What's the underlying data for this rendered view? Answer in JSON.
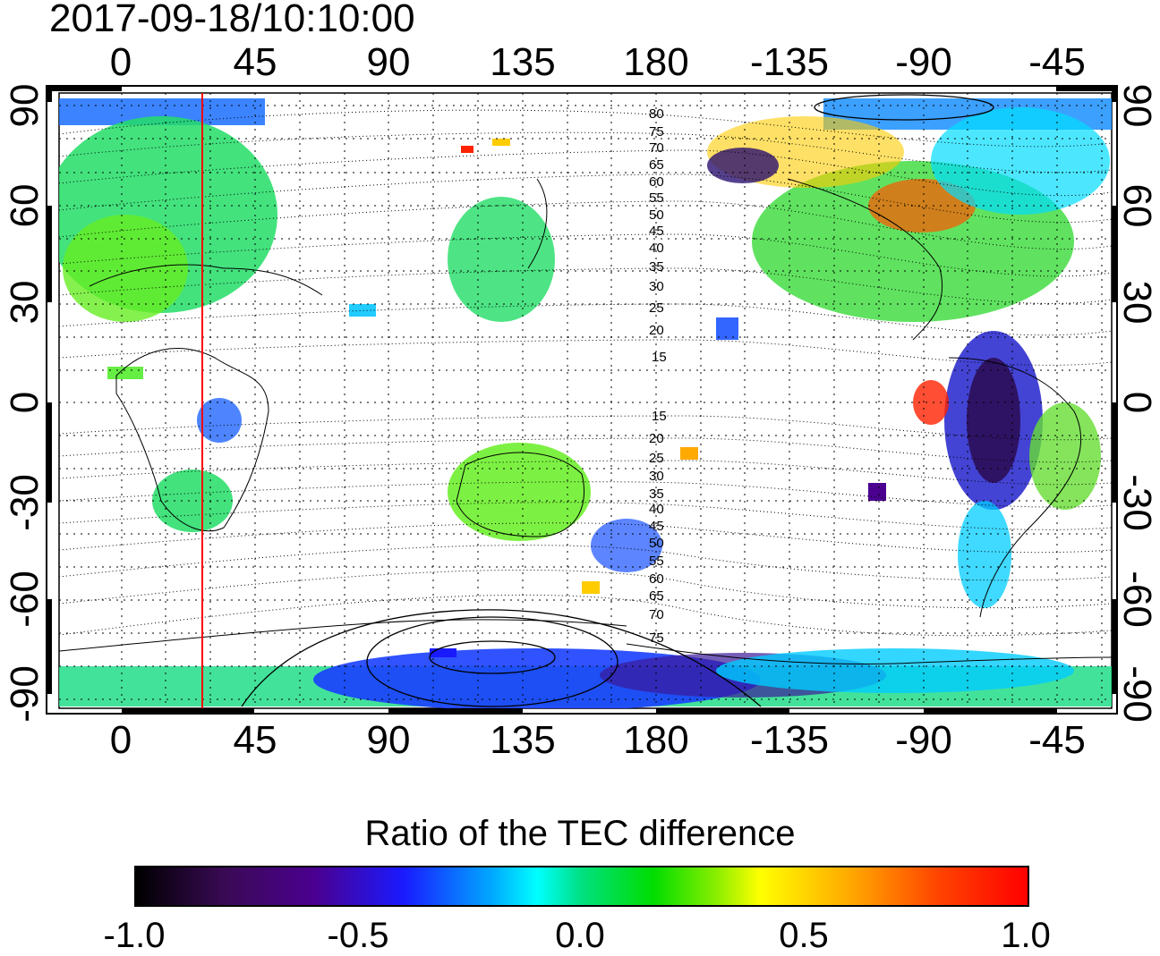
{
  "timestamp": "2017-09-18/10:10:00",
  "axes": {
    "lon_top": [
      "0",
      "45",
      "90",
      "135",
      "180",
      "-135",
      "-90",
      "-45"
    ],
    "lon_bottom": [
      "0",
      "45",
      "90",
      "135",
      "180",
      "-135",
      "-90",
      "-45"
    ],
    "lat_left": [
      "90",
      "60",
      "30",
      "0",
      "-30",
      "-60",
      "-90"
    ],
    "lat_right": [
      "90",
      "60",
      "30",
      "0",
      "-30",
      "-60",
      "-90"
    ]
  },
  "magnetic_latitude_labels": {
    "north": [
      "80",
      "75",
      "70",
      "65",
      "60",
      "55",
      "50",
      "45",
      "40",
      "35",
      "30",
      "25",
      "20",
      "15"
    ],
    "south": [
      "15",
      "20",
      "25",
      "30",
      "35",
      "40",
      "45",
      "50",
      "55",
      "60",
      "65",
      "70",
      "75"
    ]
  },
  "terminator_marker": {
    "longitude": 28,
    "color": "#ff0000"
  },
  "colorbar": {
    "title": "Ratio of the TEC difference",
    "ticks": [
      "-1.0",
      "-0.5",
      "0.0",
      "0.5",
      "1.0"
    ],
    "range": [
      -1.0,
      1.0
    ]
  }
}
